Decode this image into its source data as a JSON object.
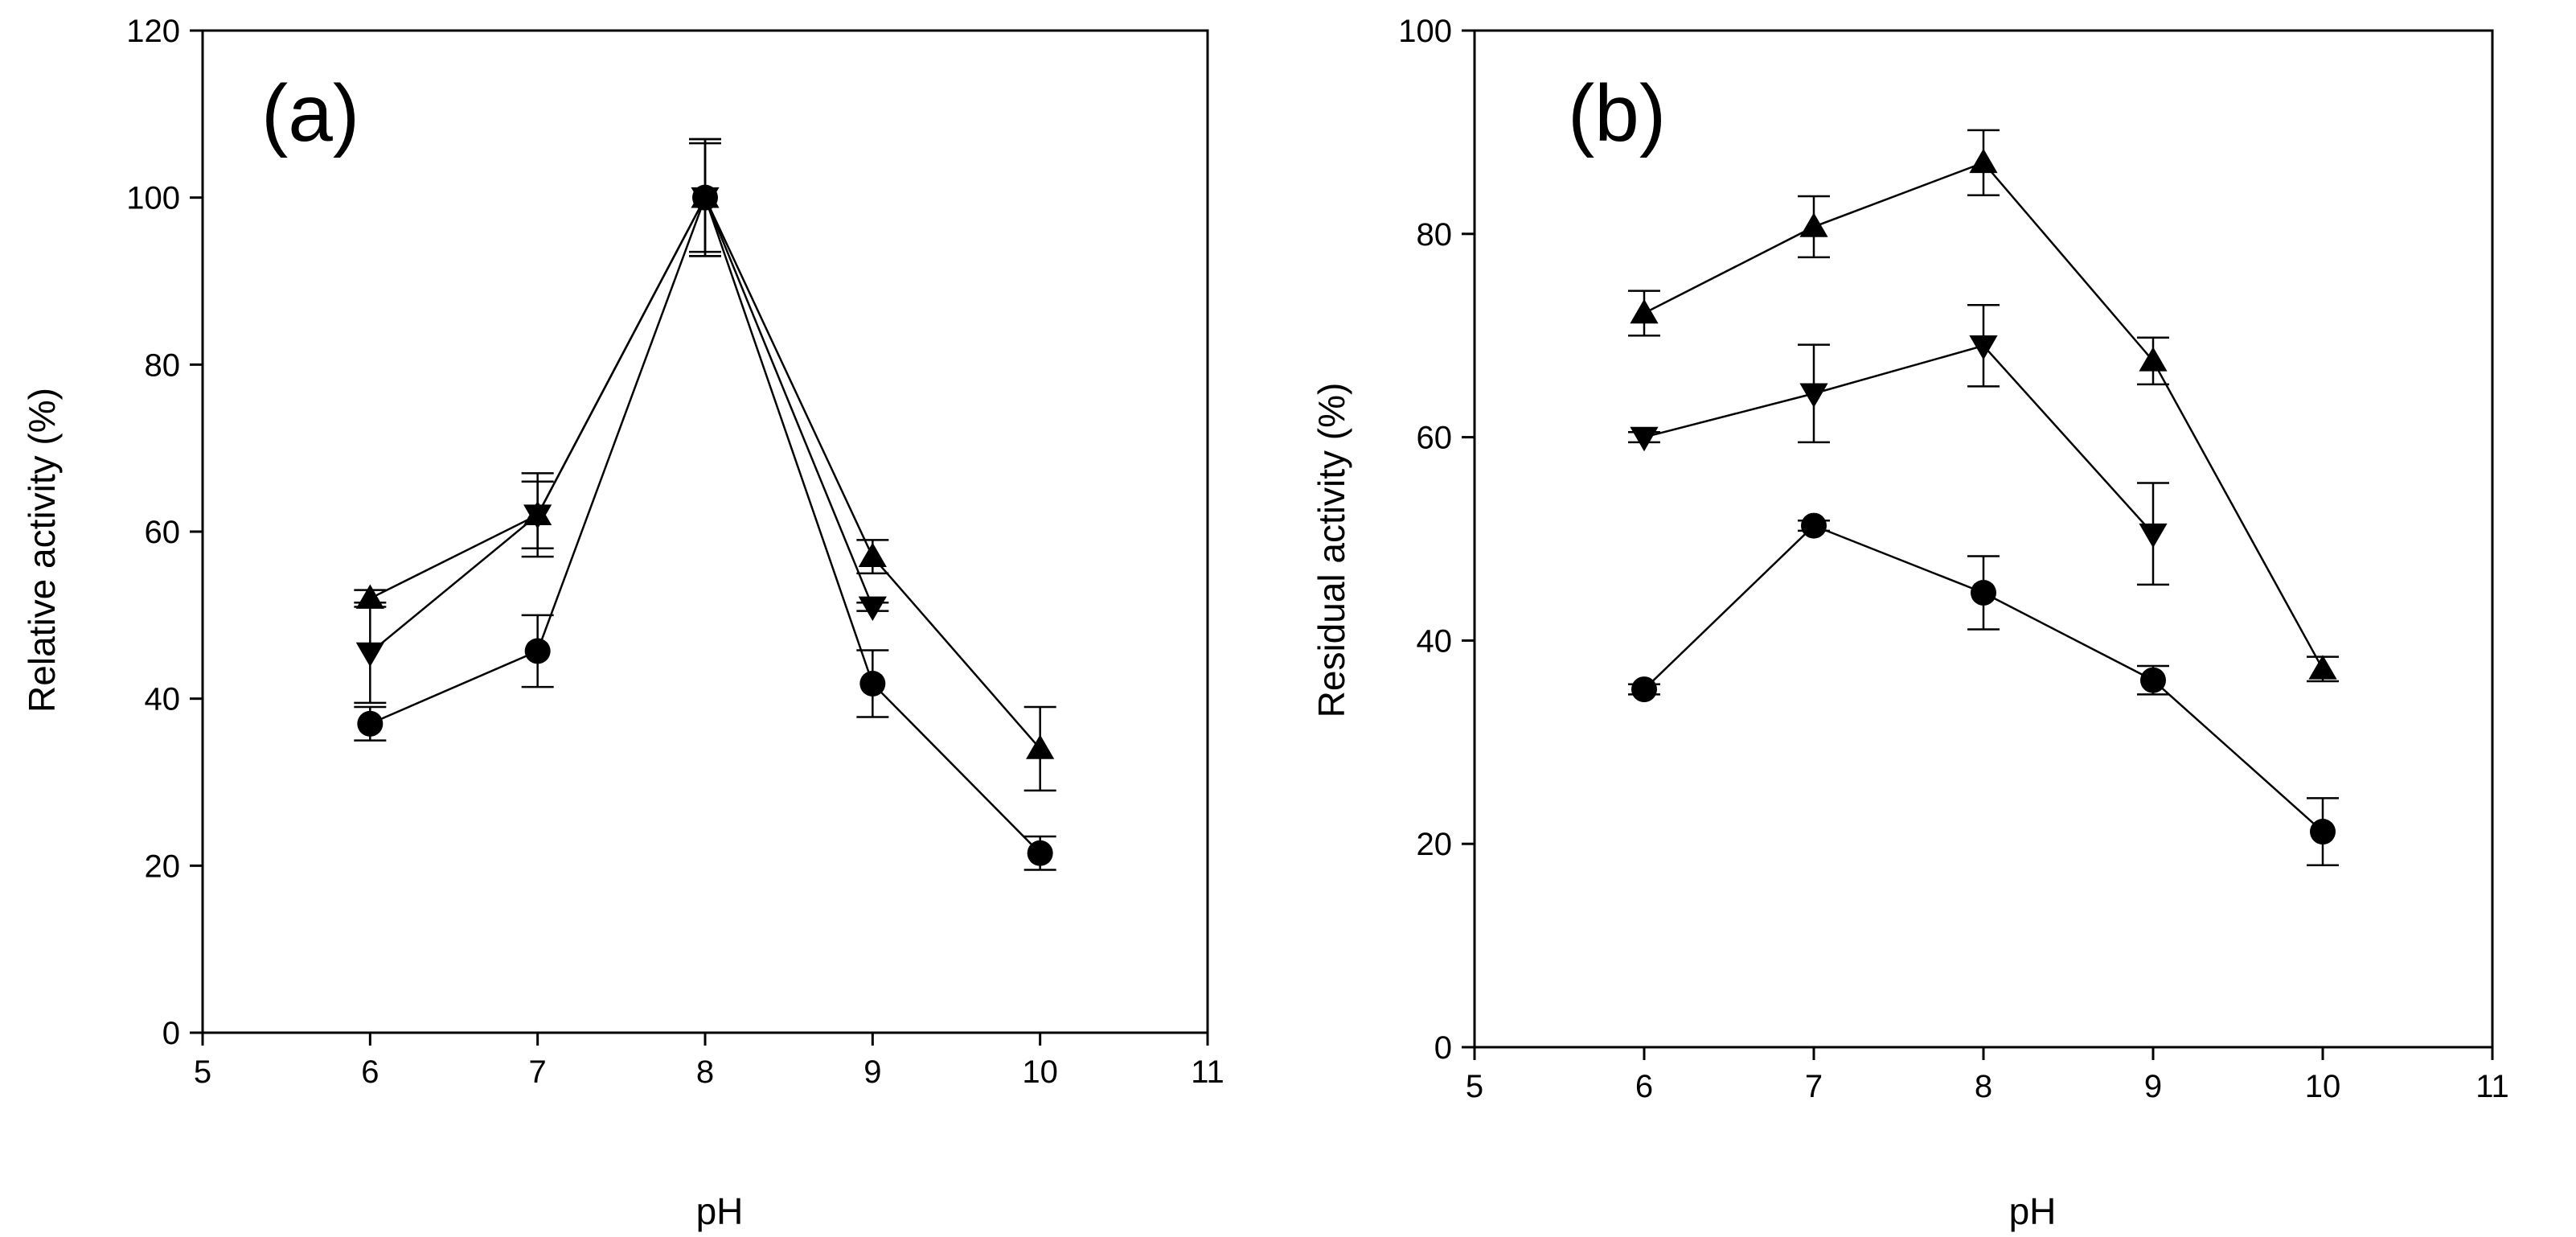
{
  "chart_data": [
    {
      "type": "line",
      "panel_label": "(a)",
      "title": "",
      "xlabel": "pH",
      "ylabel": "Relative activity (%)",
      "xlim": [
        5,
        11
      ],
      "ylim": [
        0,
        120
      ],
      "xticks": [
        5,
        6,
        7,
        8,
        9,
        10,
        11
      ],
      "yticks": [
        0,
        20,
        40,
        60,
        80,
        100,
        120
      ],
      "grid": false,
      "legend": "none",
      "x": [
        6,
        7,
        8,
        9,
        10
      ],
      "series": [
        {
          "name": "triangle-up",
          "marker": "triangle-up",
          "values": [
            52,
            62,
            100,
            57,
            34
          ],
          "errors": [
            1,
            4,
            7,
            2,
            5
          ]
        },
        {
          "name": "triangle-down",
          "marker": "triangle-down",
          "values": [
            45.5,
            62,
            100,
            51,
            null
          ],
          "errors": [
            6,
            5,
            7,
            0.5,
            0
          ]
        },
        {
          "name": "circle",
          "marker": "circle",
          "values": [
            37,
            45.7,
            100,
            41.8,
            21.5
          ],
          "errors": [
            2,
            4.3,
            6.5,
            4,
            2
          ]
        }
      ]
    },
    {
      "type": "line",
      "panel_label": "(b)",
      "title": "",
      "xlabel": "pH",
      "ylabel": "Residual activity (%)",
      "xlim": [
        5,
        11
      ],
      "ylim": [
        0,
        100
      ],
      "xticks": [
        5,
        6,
        7,
        8,
        9,
        10,
        11
      ],
      "yticks": [
        0,
        20,
        40,
        60,
        80,
        100
      ],
      "grid": false,
      "legend": "none",
      "x": [
        6,
        7,
        8,
        9,
        10
      ],
      "series": [
        {
          "name": "triangle-up",
          "marker": "triangle-up",
          "values": [
            72.2,
            80.7,
            87,
            67.5,
            37.2
          ],
          "errors": [
            2.2,
            3,
            3.2,
            2.3,
            1.2
          ]
        },
        {
          "name": "triangle-down",
          "marker": "triangle-down",
          "values": [
            60,
            64.3,
            69,
            50.5,
            null
          ],
          "errors": [
            0.5,
            4.8,
            4,
            5,
            0
          ]
        },
        {
          "name": "circle",
          "marker": "circle",
          "values": [
            35.2,
            51.3,
            44.7,
            36.1,
            21.2
          ],
          "errors": [
            0.5,
            0.5,
            3.6,
            1.4,
            3.3
          ]
        }
      ]
    }
  ]
}
